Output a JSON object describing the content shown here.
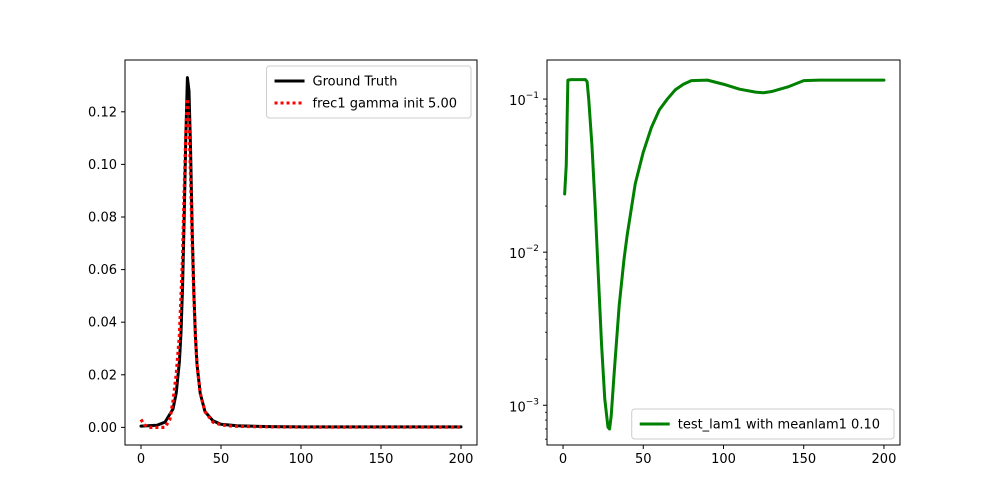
{
  "chart_data": [
    {
      "type": "line",
      "title": "",
      "xlabel": "",
      "ylabel": "",
      "xlim": [
        -10,
        210
      ],
      "ylim": [
        -0.0067,
        0.1397
      ],
      "grid": false,
      "legend_position": "top-right",
      "x_ticks": [
        {
          "value": 0,
          "label": "0"
        },
        {
          "value": 50,
          "label": "50"
        },
        {
          "value": 100,
          "label": "100"
        },
        {
          "value": 150,
          "label": "150"
        },
        {
          "value": 200,
          "label": "200"
        }
      ],
      "y_ticks": [
        {
          "value": 0.0,
          "label": "0.00"
        },
        {
          "value": 0.02,
          "label": "0.02"
        },
        {
          "value": 0.04,
          "label": "0.04"
        },
        {
          "value": 0.06,
          "label": "0.06"
        },
        {
          "value": 0.08,
          "label": "0.08"
        },
        {
          "value": 0.1,
          "label": "0.10"
        },
        {
          "value": 0.12,
          "label": "0.12"
        }
      ],
      "series": [
        {
          "name": "Ground Truth",
          "color": "#000000",
          "style": "solid",
          "x": [
            0,
            10,
            15,
            20,
            22,
            24,
            25,
            26,
            27,
            28,
            29,
            30,
            31,
            32,
            33,
            34,
            35,
            37,
            40,
            45,
            50,
            60,
            80,
            100,
            150,
            200
          ],
          "y": [
            0.0005,
            0.0008,
            0.002,
            0.007,
            0.013,
            0.025,
            0.036,
            0.054,
            0.08,
            0.11,
            0.133,
            0.128,
            0.105,
            0.075,
            0.052,
            0.035,
            0.024,
            0.013,
            0.006,
            0.0025,
            0.0012,
            0.0006,
            0.0003,
            0.0002,
            0.0002,
            0.0002
          ]
        },
        {
          "name": "frec1 gamma init 5.00",
          "color": "#ff0000",
          "style": "dotted",
          "x": [
            0,
            2,
            5,
            10,
            15,
            18,
            20,
            22,
            24,
            26,
            27,
            28,
            29,
            30,
            31,
            32,
            33,
            34,
            35,
            37,
            40,
            45,
            50,
            55,
            60,
            80,
            100,
            150,
            200
          ],
          "y": [
            0.003,
            0.001,
            0.0,
            0.0,
            0.0,
            0.003,
            0.01,
            0.02,
            0.035,
            0.065,
            0.09,
            0.112,
            0.125,
            0.117,
            0.095,
            0.07,
            0.05,
            0.034,
            0.024,
            0.013,
            0.006,
            0.002,
            0.001,
            0.0006,
            0.0004,
            0.0002,
            0.0001,
            0.0001,
            0.0001
          ]
        }
      ]
    },
    {
      "type": "line",
      "title": "",
      "xlabel": "",
      "ylabel": "",
      "yscale": "log",
      "xlim": [
        -10,
        210
      ],
      "ylim": [
        0.00055,
        0.18
      ],
      "grid": false,
      "legend_position": "bottom-right",
      "x_ticks": [
        {
          "value": 0,
          "label": "0"
        },
        {
          "value": 50,
          "label": "50"
        },
        {
          "value": 100,
          "label": "100"
        },
        {
          "value": 150,
          "label": "150"
        },
        {
          "value": 200,
          "label": "200"
        }
      ],
      "y_ticks": [
        {
          "value": 0.001,
          "base": "10",
          "exp": "−3"
        },
        {
          "value": 0.01,
          "base": "10",
          "exp": "−2"
        },
        {
          "value": 0.1,
          "base": "10",
          "exp": "−1"
        }
      ],
      "series": [
        {
          "name": "test_lam1 with meanlam1 0.10",
          "color": "#008000",
          "style": "solid",
          "x": [
            1,
            2,
            3,
            5,
            10,
            14,
            15,
            16,
            18,
            20,
            22,
            24,
            26,
            28,
            29,
            30,
            32,
            35,
            38,
            40,
            45,
            50,
            55,
            60,
            65,
            70,
            75,
            80,
            90,
            100,
            110,
            120,
            125,
            130,
            140,
            150,
            160,
            180,
            200
          ],
          "y": [
            0.024,
            0.037,
            0.133,
            0.134,
            0.134,
            0.134,
            0.13,
            0.1,
            0.05,
            0.02,
            0.007,
            0.0025,
            0.0011,
            0.00072,
            0.0007,
            0.00085,
            0.0017,
            0.0045,
            0.009,
            0.013,
            0.028,
            0.045,
            0.065,
            0.085,
            0.1,
            0.115,
            0.125,
            0.132,
            0.133,
            0.125,
            0.116,
            0.111,
            0.11,
            0.112,
            0.12,
            0.132,
            0.133,
            0.133,
            0.133
          ]
        }
      ]
    }
  ]
}
